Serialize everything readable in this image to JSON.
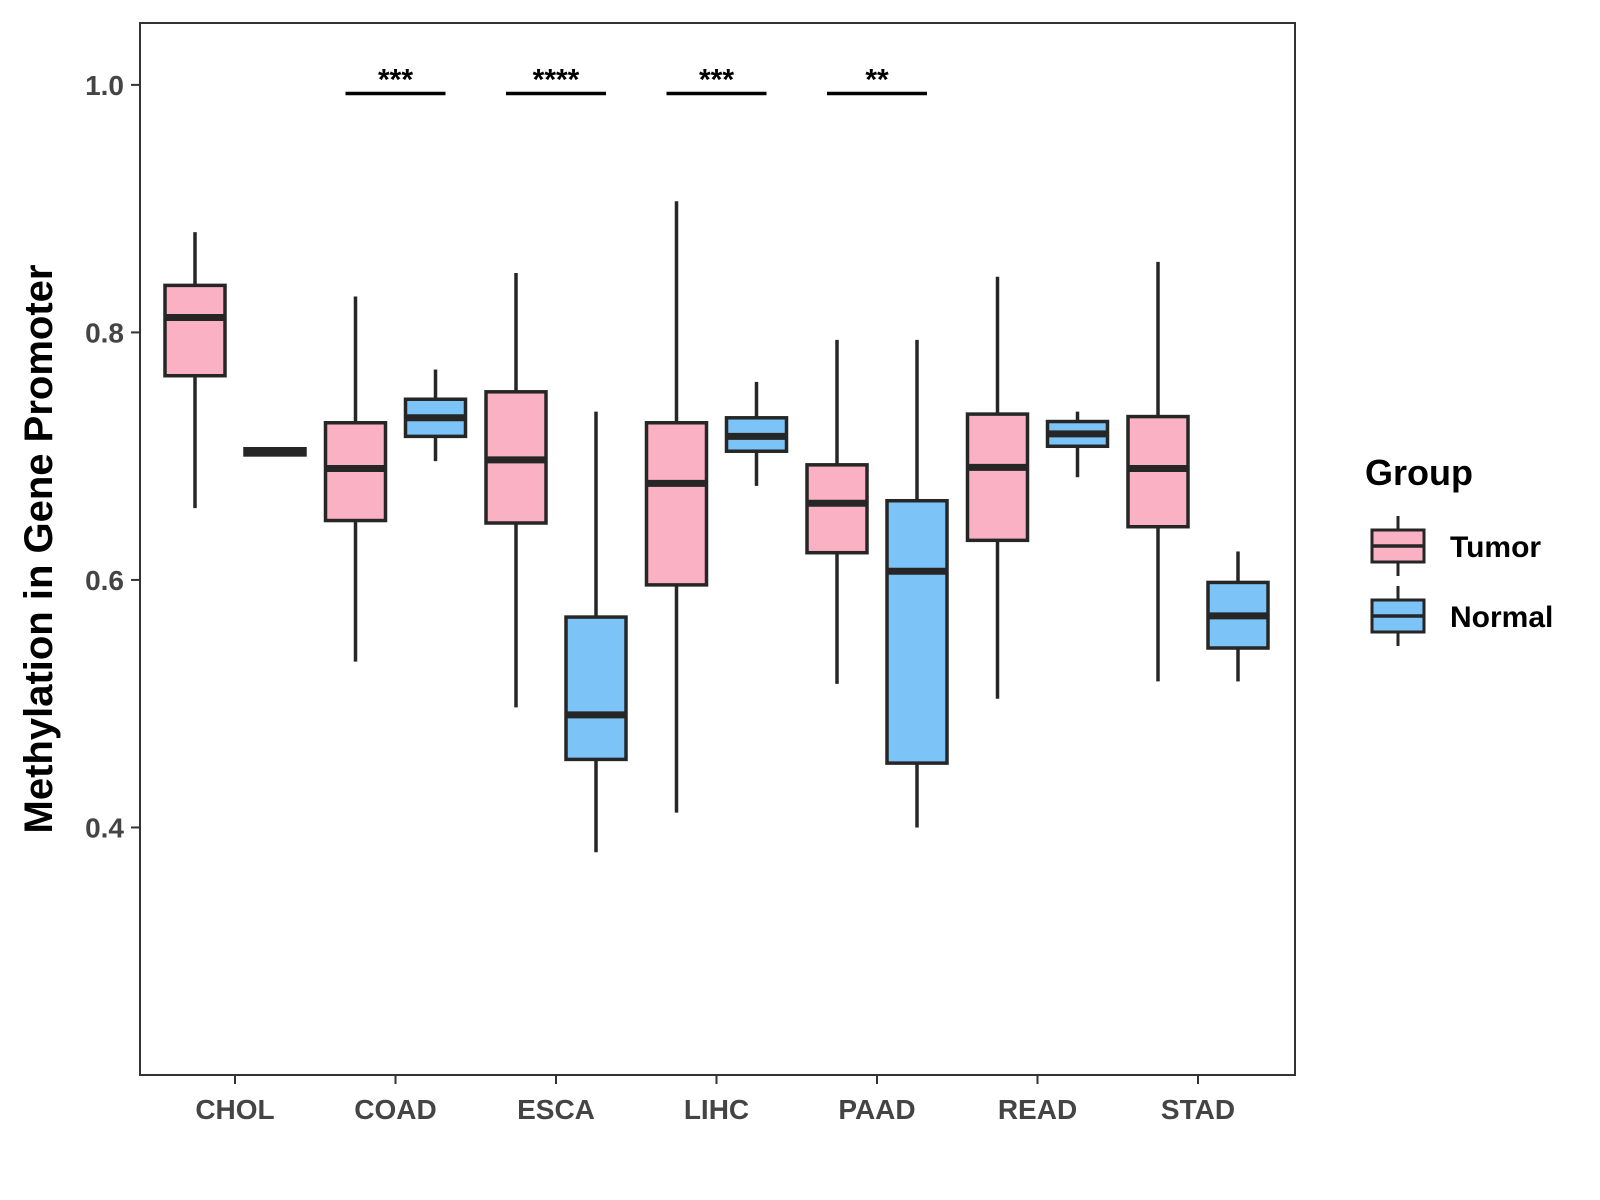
{
  "chart_data": {
    "type": "boxplot",
    "title": "",
    "xlabel": "",
    "ylabel": "Methylation in Gene Promoter",
    "ylim": [
      0.2,
      1.05
    ],
    "yticks": [
      0.4,
      0.6,
      0.8,
      1.0
    ],
    "ytick_labels": [
      "0.4",
      "0.6",
      "0.8",
      "1.0"
    ],
    "categories": [
      "CHOL",
      "COAD",
      "ESCA",
      "LIHC",
      "PAAD",
      "READ",
      "STAD"
    ],
    "legend": {
      "title": "Group",
      "placement": "right",
      "entries": [
        {
          "name": "Tumor",
          "color": "#FBB1C4"
        },
        {
          "name": "Normal",
          "color": "#7CC3F7"
        }
      ]
    },
    "series": [
      {
        "name": "Tumor",
        "color": "#FBB1C4",
        "boxes": [
          {
            "category": "CHOL",
            "min": 0.658,
            "q1": 0.765,
            "median": 0.812,
            "q3": 0.838,
            "max": 0.881
          },
          {
            "category": "COAD",
            "min": 0.534,
            "q1": 0.648,
            "median": 0.69,
            "q3": 0.727,
            "max": 0.829
          },
          {
            "category": "ESCA",
            "min": 0.497,
            "q1": 0.646,
            "median": 0.697,
            "q3": 0.752,
            "max": 0.848
          },
          {
            "category": "LIHC",
            "min": 0.412,
            "q1": 0.596,
            "median": 0.678,
            "q3": 0.727,
            "max": 0.906
          },
          {
            "category": "PAAD",
            "min": 0.516,
            "q1": 0.622,
            "median": 0.662,
            "q3": 0.693,
            "max": 0.794
          },
          {
            "category": "READ",
            "min": 0.504,
            "q1": 0.632,
            "median": 0.691,
            "q3": 0.734,
            "max": 0.845
          },
          {
            "category": "STAD",
            "min": 0.518,
            "q1": 0.643,
            "median": 0.69,
            "q3": 0.732,
            "max": 0.857
          }
        ]
      },
      {
        "name": "Normal",
        "color": "#7CC3F7",
        "boxes": [
          {
            "category": "CHOL",
            "min": 0.701,
            "q1": 0.701,
            "median": 0.704,
            "q3": 0.706,
            "max": 0.706
          },
          {
            "category": "COAD",
            "min": 0.696,
            "q1": 0.716,
            "median": 0.731,
            "q3": 0.746,
            "max": 0.77
          },
          {
            "category": "ESCA",
            "min": 0.38,
            "q1": 0.455,
            "median": 0.491,
            "q3": 0.57,
            "max": 0.736
          },
          {
            "category": "LIHC",
            "min": 0.676,
            "q1": 0.704,
            "median": 0.716,
            "q3": 0.731,
            "max": 0.76
          },
          {
            "category": "PAAD",
            "min": 0.4,
            "q1": 0.452,
            "median": 0.607,
            "q3": 0.664,
            "max": 0.794
          },
          {
            "category": "READ",
            "min": 0.683,
            "q1": 0.708,
            "median": 0.718,
            "q3": 0.728,
            "max": 0.736
          },
          {
            "category": "STAD",
            "min": 0.518,
            "q1": 0.545,
            "median": 0.571,
            "q3": 0.598,
            "max": 0.623
          }
        ]
      }
    ],
    "annotations": [
      {
        "category": "COAD",
        "label": "***",
        "y": 0.993
      },
      {
        "category": "ESCA",
        "label": "****",
        "y": 0.993
      },
      {
        "category": "LIHC",
        "label": "***",
        "y": 0.993
      },
      {
        "category": "PAAD",
        "label": "**",
        "y": 0.993
      }
    ]
  }
}
